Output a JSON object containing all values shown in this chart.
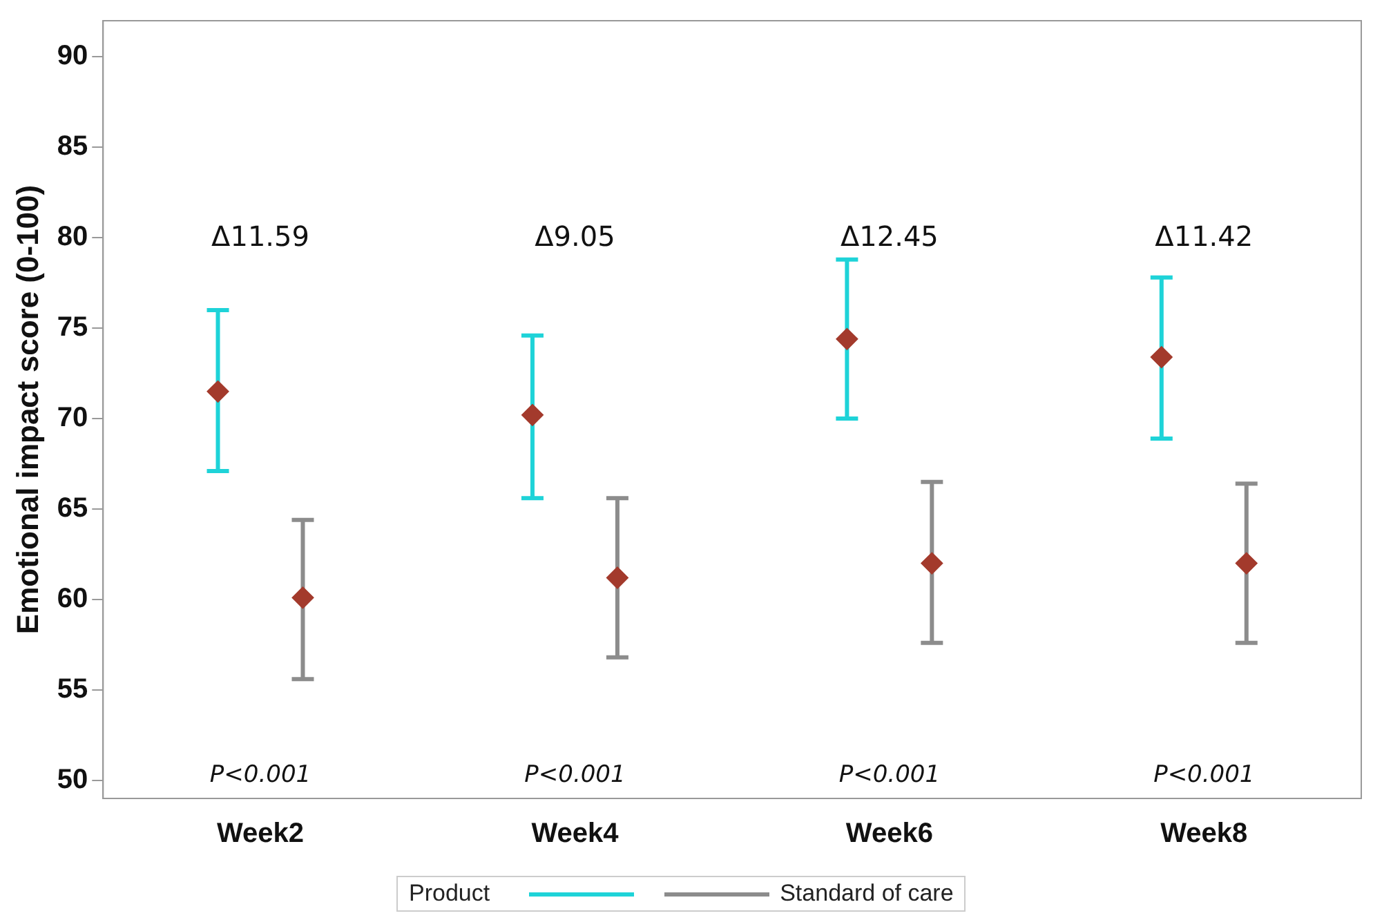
{
  "chart_data": {
    "type": "scatter",
    "ylabel": "Emotional impact score (0-100)",
    "categories": [
      "Week2",
      "Week4",
      "Week6",
      "Week8"
    ],
    "ylim": [
      49,
      92
    ],
    "yticks": [
      50,
      55,
      60,
      65,
      70,
      75,
      80,
      85,
      90
    ],
    "grid": false,
    "legend": "bottom",
    "legend_title": "Product",
    "marker": "diamond",
    "series": [
      {
        "color": "#1ed3d8",
        "colors": [
          "#a33a2c",
          "#a33a2c",
          "#a33a2c",
          "#a33a2c"
        ],
        "values": [
          71.5,
          70.2,
          74.4,
          73.4
        ],
        "errors": [
          [
            67.1,
            76.0
          ],
          [
            65.6,
            74.6
          ],
          [
            70.0,
            78.8
          ],
          [
            68.9,
            77.8
          ]
        ]
      },
      {
        "name": "Standard of care",
        "color": "#8c8c8c",
        "colors": [
          "#a33a2c",
          "#a33a2c",
          "#a33a2c",
          "#a33a2c"
        ],
        "values": [
          60.1,
          61.2,
          62.0,
          62.0
        ],
        "errors": [
          [
            55.6,
            64.4
          ],
          [
            56.8,
            65.6
          ],
          [
            57.6,
            66.5
          ],
          [
            57.6,
            66.4
          ]
        ]
      }
    ],
    "annotations": [
      "Δ11.59",
      "Δ9.05",
      "Δ12.45",
      "Δ11.42",
      "P<0.001",
      "P<0.001",
      "P<0.001",
      "P<0.001"
    ]
  }
}
